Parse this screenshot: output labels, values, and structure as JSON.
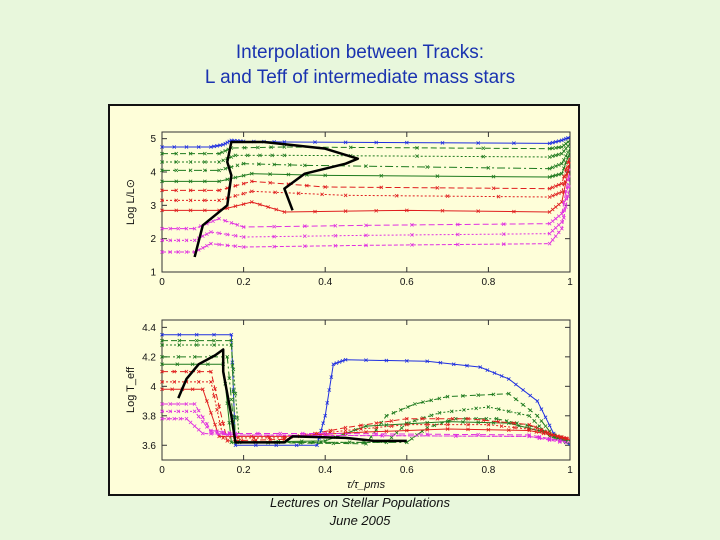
{
  "slide": {
    "title_line1": "Interpolation between Tracks:",
    "title_line2": "L and Teff of intermediate mass stars",
    "footer_line1": "Lectures on Stellar Populations",
    "footer_line2": "June 2005"
  },
  "colors": {
    "background": "#e8f7dc",
    "title": "#1a33b0",
    "panel": "#fefed9",
    "blue": "#1f2fe0",
    "green": "#1e7a1e",
    "red": "#e01f1f",
    "magenta": "#e030e0",
    "isochrone": "#000000"
  },
  "chart_data": [
    {
      "type": "line",
      "ylabel": "Log L/L⊙",
      "xlim": [
        0,
        1
      ],
      "ylim": [
        1,
        5.2
      ],
      "x_ticks": [
        "0",
        "0.2",
        "0.4",
        "0.6",
        "0.8",
        "1"
      ],
      "y_ticks": [
        "1",
        "2",
        "3",
        "4",
        "5"
      ],
      "series": [
        {
          "color": "blue",
          "values": [
            [
              0,
              4.75
            ],
            [
              0.12,
              4.75
            ],
            [
              0.15,
              4.82
            ],
            [
              0.17,
              4.95
            ],
            [
              0.2,
              4.92
            ],
            [
              0.3,
              4.9
            ],
            [
              0.6,
              4.88
            ],
            [
              0.95,
              4.86
            ],
            [
              0.98,
              4.95
            ],
            [
              1,
              5.05
            ]
          ]
        },
        {
          "color": "green",
          "values": [
            [
              0,
              4.55
            ],
            [
              0.14,
              4.55
            ],
            [
              0.17,
              4.72
            ],
            [
              0.3,
              4.75
            ],
            [
              0.95,
              4.7
            ],
            [
              0.98,
              4.75
            ],
            [
              1,
              4.95
            ]
          ]
        },
        {
          "color": "green",
          "values": [
            [
              0,
              4.3
            ],
            [
              0.14,
              4.3
            ],
            [
              0.18,
              4.5
            ],
            [
              0.3,
              4.5
            ],
            [
              0.95,
              4.45
            ],
            [
              0.98,
              4.55
            ],
            [
              1,
              4.85
            ]
          ]
        },
        {
          "color": "green",
          "values": [
            [
              0,
              4.05
            ],
            [
              0.14,
              4.05
            ],
            [
              0.2,
              4.25
            ],
            [
              0.35,
              4.2
            ],
            [
              0.95,
              4.1
            ],
            [
              0.98,
              4.25
            ],
            [
              1,
              4.7
            ]
          ]
        },
        {
          "color": "green",
          "values": [
            [
              0,
              3.72
            ],
            [
              0.14,
              3.72
            ],
            [
              0.22,
              3.95
            ],
            [
              0.4,
              3.9
            ],
            [
              0.95,
              3.85
            ],
            [
              0.98,
              3.95
            ],
            [
              1,
              4.6
            ]
          ]
        },
        {
          "color": "red",
          "values": [
            [
              0,
              3.45
            ],
            [
              0.14,
              3.45
            ],
            [
              0.22,
              3.72
            ],
            [
              0.4,
              3.55
            ],
            [
              0.95,
              3.5
            ],
            [
              0.98,
              3.65
            ],
            [
              1,
              4.5
            ]
          ]
        },
        {
          "color": "red",
          "values": [
            [
              0,
              3.15
            ],
            [
              0.14,
              3.15
            ],
            [
              0.22,
              3.42
            ],
            [
              0.45,
              3.3
            ],
            [
              0.95,
              3.25
            ],
            [
              0.98,
              3.4
            ],
            [
              1,
              4.4
            ]
          ]
        },
        {
          "color": "red",
          "values": [
            [
              0,
              2.85
            ],
            [
              0.14,
              2.85
            ],
            [
              0.22,
              3.1
            ],
            [
              0.3,
              2.8
            ],
            [
              0.6,
              2.85
            ],
            [
              0.95,
              2.8
            ],
            [
              0.98,
              3.1
            ],
            [
              1,
              4.3
            ]
          ]
        },
        {
          "color": "magenta",
          "values": [
            [
              0,
              2.3
            ],
            [
              0.08,
              2.3
            ],
            [
              0.14,
              2.6
            ],
            [
              0.2,
              2.35
            ],
            [
              0.5,
              2.4
            ],
            [
              0.95,
              2.45
            ],
            [
              0.98,
              2.75
            ],
            [
              1,
              4.1
            ]
          ]
        },
        {
          "color": "magenta",
          "values": [
            [
              0,
              1.95
            ],
            [
              0.08,
              1.95
            ],
            [
              0.12,
              2.2
            ],
            [
              0.2,
              2.05
            ],
            [
              0.5,
              2.1
            ],
            [
              0.95,
              2.15
            ],
            [
              0.98,
              2.5
            ],
            [
              1,
              3.9
            ]
          ]
        },
        {
          "color": "magenta",
          "values": [
            [
              0,
              1.6
            ],
            [
              0.08,
              1.6
            ],
            [
              0.12,
              1.85
            ],
            [
              0.2,
              1.75
            ],
            [
              0.5,
              1.8
            ],
            [
              0.95,
              1.85
            ],
            [
              0.98,
              2.3
            ],
            [
              1,
              3.6
            ]
          ]
        }
      ],
      "isochrone": [
        [
          0.08,
          1.45
        ],
        [
          0.1,
          2.4
        ],
        [
          0.16,
          3.0
        ],
        [
          0.17,
          3.9
        ],
        [
          0.16,
          4.3
        ],
        [
          0.17,
          4.9
        ],
        [
          0.25,
          4.9
        ],
        [
          0.4,
          4.7
        ],
        [
          0.48,
          4.4
        ],
        [
          0.45,
          4.25
        ],
        [
          0.35,
          3.95
        ],
        [
          0.3,
          3.5
        ],
        [
          0.32,
          2.85
        ]
      ]
    },
    {
      "type": "line",
      "ylabel": "Log T_eff",
      "xlabel": "τ/τ_pms",
      "xlim": [
        0,
        1
      ],
      "ylim": [
        3.5,
        4.45
      ],
      "x_ticks": [
        "0",
        "0.2",
        "0.4",
        "0.6",
        "0.8",
        "1"
      ],
      "y_ticks": [
        "3.6",
        "3.8",
        "4",
        "4.2",
        "4.4"
      ],
      "series": [
        {
          "color": "blue",
          "values": [
            [
              0,
              4.35
            ],
            [
              0.17,
              4.35
            ],
            [
              0.18,
              3.6
            ],
            [
              0.38,
              3.6
            ],
            [
              0.4,
              3.8
            ],
            [
              0.42,
              4.15
            ],
            [
              0.45,
              4.18
            ],
            [
              0.65,
              4.17
            ],
            [
              0.78,
              4.13
            ],
            [
              0.85,
              4.05
            ],
            [
              0.92,
              3.9
            ],
            [
              0.96,
              3.68
            ],
            [
              1,
              3.6
            ]
          ]
        },
        {
          "color": "green",
          "values": [
            [
              0,
              4.31
            ],
            [
              0.17,
              4.31
            ],
            [
              0.18,
              3.62
            ],
            [
              0.5,
              3.61
            ],
            [
              0.55,
              3.8
            ],
            [
              0.62,
              3.88
            ],
            [
              0.7,
              3.93
            ],
            [
              0.85,
              3.95
            ],
            [
              0.92,
              3.8
            ],
            [
              0.96,
              3.66
            ],
            [
              1,
              3.61
            ]
          ]
        },
        {
          "color": "green",
          "values": [
            [
              0,
              4.28
            ],
            [
              0.17,
              4.28
            ],
            [
              0.19,
              3.62
            ],
            [
              0.55,
              3.62
            ],
            [
              0.6,
              3.75
            ],
            [
              0.68,
              3.82
            ],
            [
              0.8,
              3.86
            ],
            [
              0.9,
              3.8
            ],
            [
              0.95,
              3.66
            ],
            [
              1,
              3.62
            ]
          ]
        },
        {
          "color": "green",
          "values": [
            [
              0,
              4.2
            ],
            [
              0.16,
              4.2
            ],
            [
              0.18,
              3.62
            ],
            [
              0.6,
              3.62
            ],
            [
              0.65,
              3.72
            ],
            [
              0.72,
              3.78
            ],
            [
              0.82,
              3.78
            ],
            [
              0.92,
              3.72
            ],
            [
              0.96,
              3.66
            ],
            [
              1,
              3.63
            ]
          ]
        },
        {
          "color": "green",
          "values": [
            [
              0,
              4.15
            ],
            [
              0.15,
              4.15
            ],
            [
              0.17,
              3.62
            ],
            [
              0.4,
              3.63
            ],
            [
              0.5,
              3.73
            ],
            [
              0.7,
              3.76
            ],
            [
              0.85,
              3.75
            ],
            [
              0.95,
              3.68
            ],
            [
              1,
              3.63
            ]
          ]
        },
        {
          "color": "red",
          "values": [
            [
              0,
              4.1
            ],
            [
              0.12,
              4.1
            ],
            [
              0.16,
              3.63
            ],
            [
              0.3,
              3.64
            ],
            [
              0.45,
              3.72
            ],
            [
              0.6,
              3.78
            ],
            [
              0.75,
              3.78
            ],
            [
              0.9,
              3.74
            ],
            [
              0.96,
              3.67
            ],
            [
              1,
              3.64
            ]
          ]
        },
        {
          "color": "red",
          "values": [
            [
              0,
              4.03
            ],
            [
              0.12,
              4.03
            ],
            [
              0.15,
              3.65
            ],
            [
              0.3,
              3.65
            ],
            [
              0.45,
              3.7
            ],
            [
              0.6,
              3.74
            ],
            [
              0.8,
              3.74
            ],
            [
              0.93,
              3.7
            ],
            [
              0.97,
              3.66
            ],
            [
              1,
              3.64
            ]
          ]
        },
        {
          "color": "red",
          "values": [
            [
              0,
              3.98
            ],
            [
              0.1,
              3.98
            ],
            [
              0.14,
              3.66
            ],
            [
              0.3,
              3.66
            ],
            [
              0.5,
              3.69
            ],
            [
              0.7,
              3.71
            ],
            [
              0.9,
              3.7
            ],
            [
              0.97,
              3.66
            ],
            [
              1,
              3.64
            ]
          ]
        },
        {
          "color": "magenta",
          "values": [
            [
              0,
              3.88
            ],
            [
              0.08,
              3.88
            ],
            [
              0.12,
              3.7
            ],
            [
              0.18,
              3.68
            ],
            [
              0.4,
              3.68
            ],
            [
              0.9,
              3.67
            ],
            [
              1,
              3.62
            ]
          ]
        },
        {
          "color": "magenta",
          "values": [
            [
              0,
              3.83
            ],
            [
              0.08,
              3.83
            ],
            [
              0.12,
              3.69
            ],
            [
              0.18,
              3.67
            ],
            [
              0.9,
              3.66
            ],
            [
              1,
              3.62
            ]
          ]
        },
        {
          "color": "magenta",
          "values": [
            [
              0,
              3.78
            ],
            [
              0.06,
              3.78
            ],
            [
              0.1,
              3.68
            ],
            [
              0.18,
              3.67
            ],
            [
              0.9,
              3.66
            ],
            [
              1,
              3.61
            ]
          ]
        }
      ],
      "isochrone": [
        [
          0.04,
          3.92
        ],
        [
          0.06,
          4.05
        ],
        [
          0.09,
          4.15
        ],
        [
          0.13,
          4.21
        ],
        [
          0.15,
          4.25
        ],
        [
          0.15,
          4.1
        ],
        [
          0.16,
          3.95
        ],
        [
          0.17,
          3.8
        ],
        [
          0.18,
          3.62
        ],
        [
          0.3,
          3.62
        ],
        [
          0.32,
          3.66
        ],
        [
          0.45,
          3.65
        ],
        [
          0.52,
          3.63
        ],
        [
          0.6,
          3.63
        ]
      ]
    }
  ]
}
